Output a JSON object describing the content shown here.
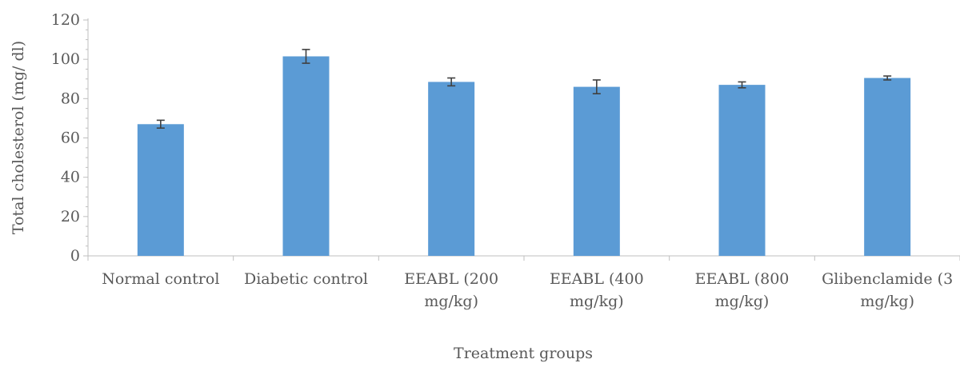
{
  "chart_data": {
    "type": "bar",
    "title": "",
    "xlabel": "Treatment groups",
    "ylabel": "Total cholesterol (mg/ dl)",
    "ylim": [
      0,
      120
    ],
    "yticks": [
      0,
      20,
      40,
      60,
      80,
      100,
      120
    ],
    "grid": false,
    "categories": [
      [
        "Normal control"
      ],
      [
        "Diabetic control"
      ],
      [
        "EEABL (200",
        "mg/kg)"
      ],
      [
        "EEABL (400",
        "mg/kg)"
      ],
      [
        "EEABL (800",
        "mg/kg)"
      ],
      [
        "Glibenclamide (3",
        "mg/kg)"
      ]
    ],
    "values": [
      67,
      101.5,
      88.5,
      86,
      87,
      90.5
    ],
    "errors": [
      2,
      3.5,
      2,
      3.5,
      1.5,
      1
    ],
    "colors": {
      "bar": "#5b9bd5",
      "error_bar": "#404040",
      "axis": "#bfbfbf",
      "text": "#595959"
    }
  }
}
